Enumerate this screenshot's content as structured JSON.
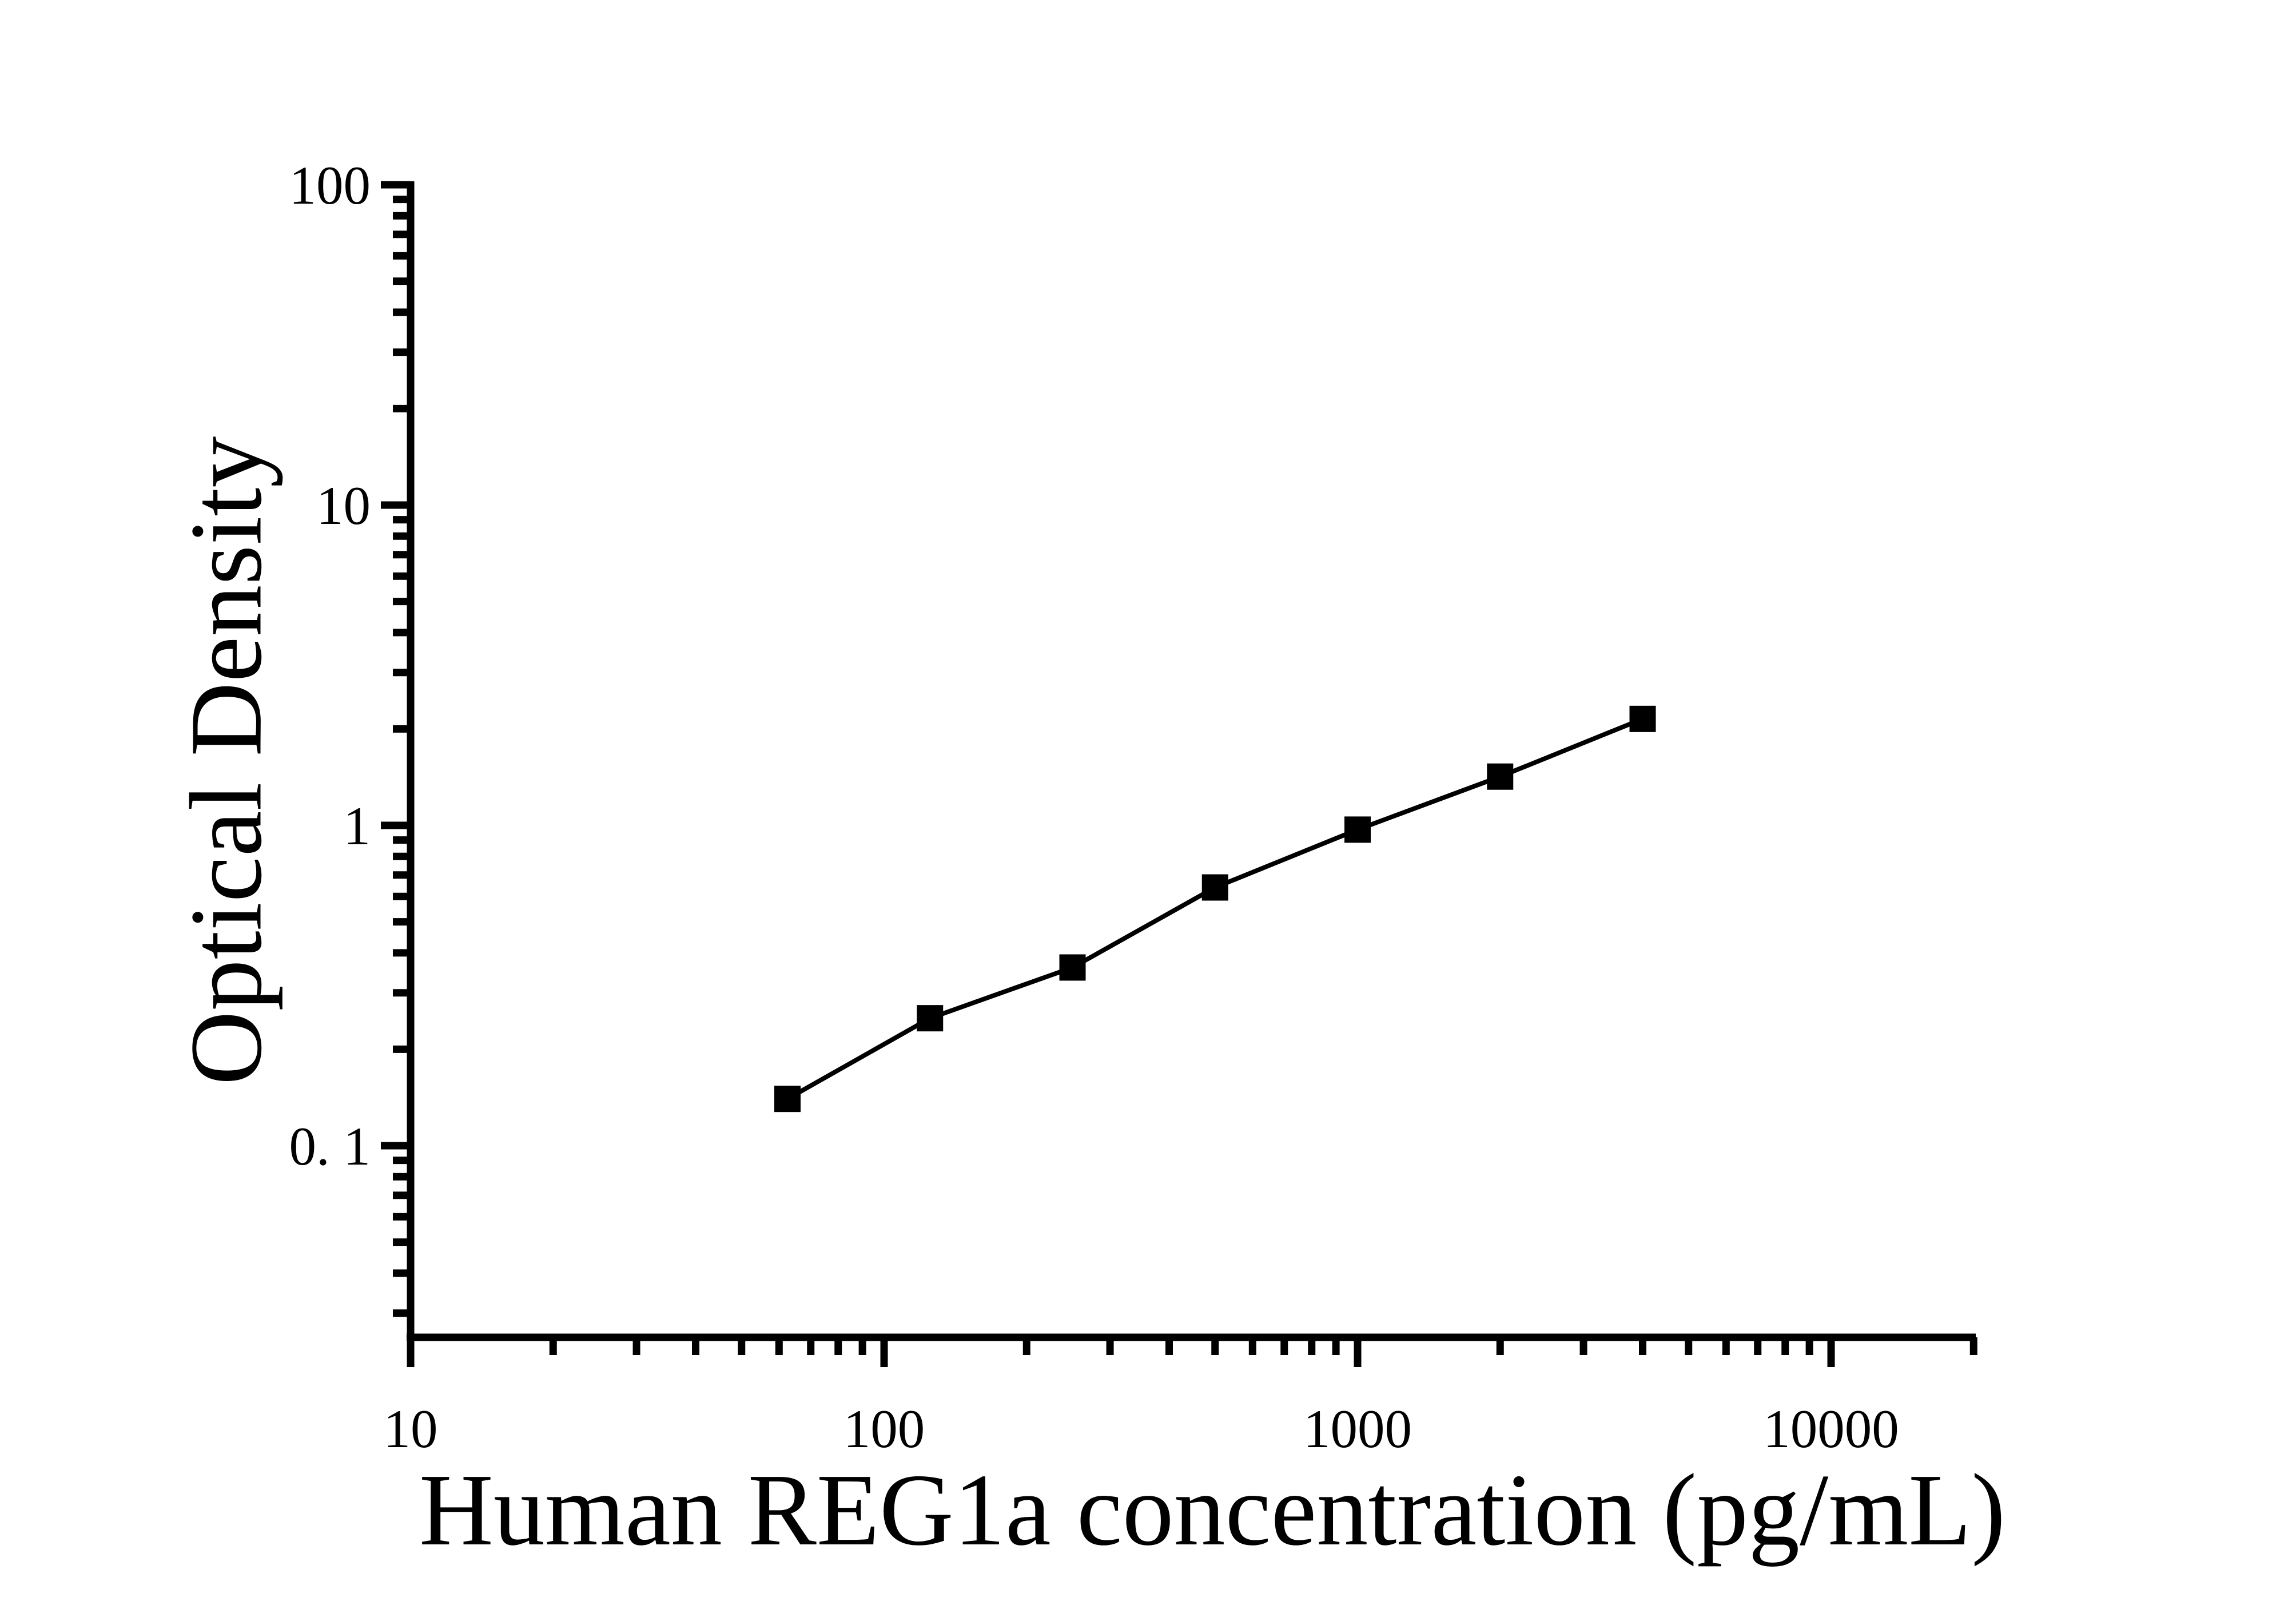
{
  "figure": {
    "background": "#ffffff"
  },
  "chart_data": {
    "type": "line",
    "title": "",
    "xlabel": "Human REG1a concentration (pg/mL)",
    "ylabel": "Optical Density",
    "x_scale": "log",
    "y_scale": "log",
    "xlim": [
      10,
      20000
    ],
    "ylim": [
      0.025,
      100
    ],
    "x": [
      62.5,
      125,
      250,
      500,
      1000,
      2000,
      4000
    ],
    "y": [
      0.14,
      0.25,
      0.36,
      0.64,
      0.97,
      1.42,
      2.15
    ],
    "x_major_ticks": [
      10,
      100,
      1000,
      10000
    ],
    "x_tick_labels": [
      "10",
      "100",
      "1000",
      "10000"
    ],
    "y_major_ticks": [
      100,
      10,
      1,
      0.1
    ],
    "y_tick_labels": [
      "100",
      "10",
      "1",
      "0. 1"
    ],
    "grid": false,
    "legend": false,
    "marker": "filled-square",
    "line_style": "solid",
    "colors": {
      "axis": "#000000",
      "line": "#000000",
      "marker": "#000000",
      "text": "#000000",
      "background": "#ffffff"
    }
  }
}
